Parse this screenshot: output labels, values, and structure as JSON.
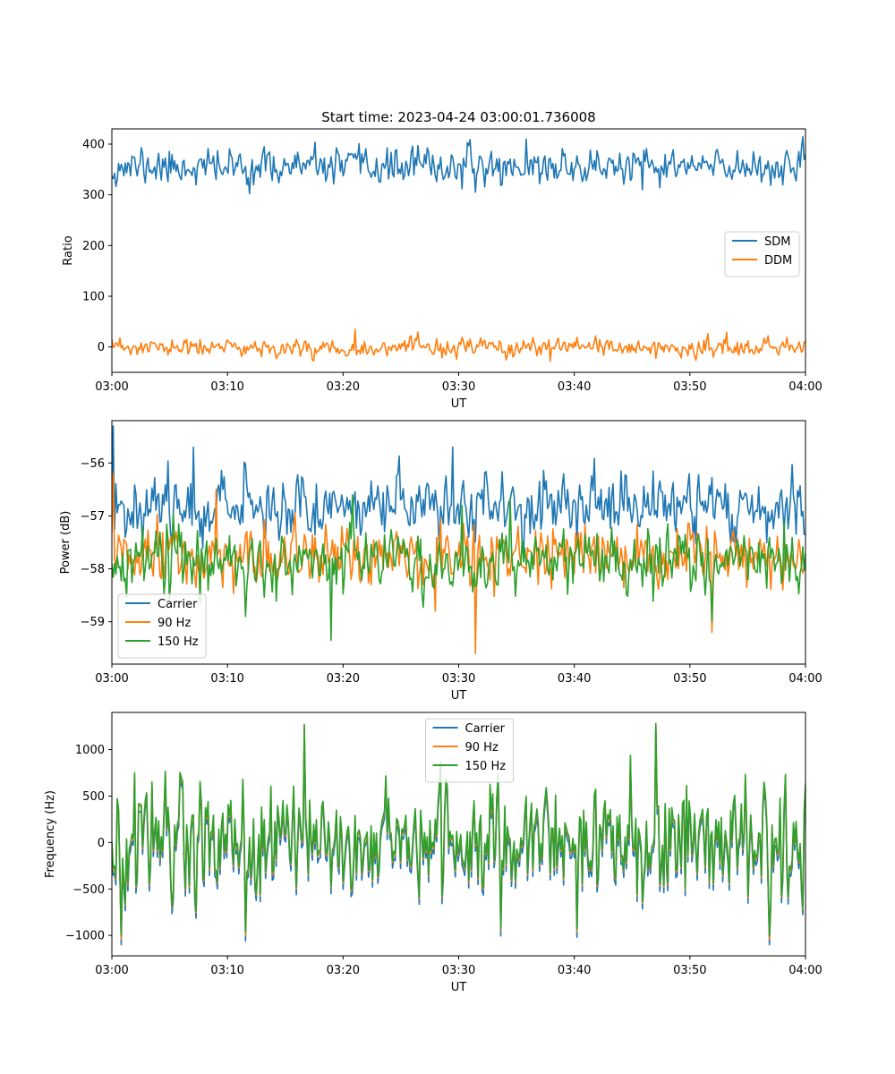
{
  "chart_data": [
    {
      "type": "line",
      "title": "Start time: 2023-04-24 03:00:01.736008",
      "xlabel": "UT",
      "ylabel": "Ratio",
      "x_tick_labels": [
        "03:00",
        "03:10",
        "03:20",
        "03:30",
        "03:40",
        "03:50",
        "04:00"
      ],
      "xlim_minutes": [
        0,
        60
      ],
      "ylim": [
        -50,
        430
      ],
      "yticks": [
        0,
        100,
        200,
        300,
        400
      ],
      "y_tick_labels": [
        "0",
        "100",
        "200",
        "300",
        "400"
      ],
      "legend_placement": "center-right",
      "series": [
        {
          "name": "SDM",
          "color": "#1f77b4",
          "base": 355,
          "noise": 17,
          "seed": 11,
          "highlights": [
            [
              0.1,
              332
            ],
            [
              2.6,
              393
            ],
            [
              11.7,
              320
            ],
            [
              26.5,
              397
            ],
            [
              31.5,
              305
            ],
            [
              35.8,
              410
            ],
            [
              45.9,
              310
            ],
            [
              55.5,
              385
            ]
          ]
        },
        {
          "name": "DDM",
          "color": "#ff7f0e",
          "base": -2,
          "noise": 9,
          "seed": 23,
          "highlights": [
            [
              21.0,
              35
            ],
            [
              37.9,
              -28
            ],
            [
              47.0,
              -22
            ],
            [
              56.8,
              22
            ]
          ]
        }
      ]
    },
    {
      "type": "line",
      "title": "",
      "xlabel": "UT",
      "ylabel": "Power (dB)",
      "x_tick_labels": [
        "03:00",
        "03:10",
        "03:20",
        "03:30",
        "03:40",
        "03:50",
        "04:00"
      ],
      "xlim_minutes": [
        0,
        60
      ],
      "ylim": [
        -59.8,
        -55.2
      ],
      "yticks": [
        -59,
        -58,
        -57,
        -56
      ],
      "y_tick_labels": [
        "−59",
        "−58",
        "−57",
        "−56"
      ],
      "legend_placement": "lower-left",
      "series": [
        {
          "name": "Carrier",
          "color": "#1f77b4",
          "base": -56.8,
          "noise": 0.3,
          "seed": 37,
          "highlights": [
            [
              0.15,
              -55.3
            ],
            [
              7.0,
              -55.7
            ],
            [
              29.5,
              -55.7
            ],
            [
              54.0,
              -57.5
            ]
          ]
        },
        {
          "name": "90 Hz",
          "color": "#ff7f0e",
          "base": -57.8,
          "noise": 0.28,
          "seed": 51,
          "highlights": [
            [
              0.1,
              -56.2
            ],
            [
              9.0,
              -56.5
            ],
            [
              28.0,
              -58.8
            ],
            [
              31.5,
              -59.6
            ],
            [
              51.9,
              -59.2
            ]
          ]
        },
        {
          "name": "150 Hz",
          "color": "#2ca02c",
          "base": -57.85,
          "noise": 0.3,
          "seed": 67,
          "highlights": [
            [
              11.6,
              -58.9
            ],
            [
              19.0,
              -59.35
            ],
            [
              20.8,
              -56.6
            ],
            [
              30.3,
              -56.8
            ],
            [
              51.9,
              -59.0
            ]
          ]
        }
      ]
    },
    {
      "type": "line",
      "title": "",
      "xlabel": "UT",
      "ylabel": "Frequency (Hz)",
      "x_tick_labels": [
        "03:00",
        "03:10",
        "03:20",
        "03:30",
        "03:40",
        "03:50",
        "04:00"
      ],
      "xlim_minutes": [
        0,
        60
      ],
      "ylim": [
        -1220,
        1400
      ],
      "yticks": [
        -1000,
        -500,
        0,
        500,
        1000
      ],
      "y_tick_labels": [
        "−1000",
        "−500",
        "0",
        "500",
        "1000"
      ],
      "legend_placement": "upper-center",
      "series": [
        {
          "name": "Carrier",
          "color": "#1f77b4",
          "base": -60,
          "noise": 330,
          "seed": 83,
          "highlights": [
            [
              0.8,
              -1100
            ],
            [
              11.6,
              -1060
            ],
            [
              16.6,
              1230
            ],
            [
              40.2,
              -1020
            ],
            [
              47.1,
              1230
            ],
            [
              56.9,
              -1100
            ]
          ]
        },
        {
          "name": "90 Hz",
          "color": "#ff7f0e",
          "base": 0,
          "noise": 330,
          "seed": 83,
          "highlights": [
            [
              0.8,
              -1040
            ],
            [
              11.6,
              -1000
            ],
            [
              16.6,
              1260
            ],
            [
              40.2,
              -960
            ],
            [
              47.1,
              1260
            ],
            [
              56.9,
              -1040
            ]
          ]
        },
        {
          "name": "150 Hz",
          "color": "#2ca02c",
          "base": 20,
          "noise": 330,
          "seed": 83,
          "highlights": [
            [
              0.8,
              -1000
            ],
            [
              11.6,
              -960
            ],
            [
              16.6,
              1270
            ],
            [
              40.2,
              -930
            ],
            [
              47.1,
              1280
            ],
            [
              56.9,
              -1000
            ]
          ]
        }
      ]
    }
  ]
}
